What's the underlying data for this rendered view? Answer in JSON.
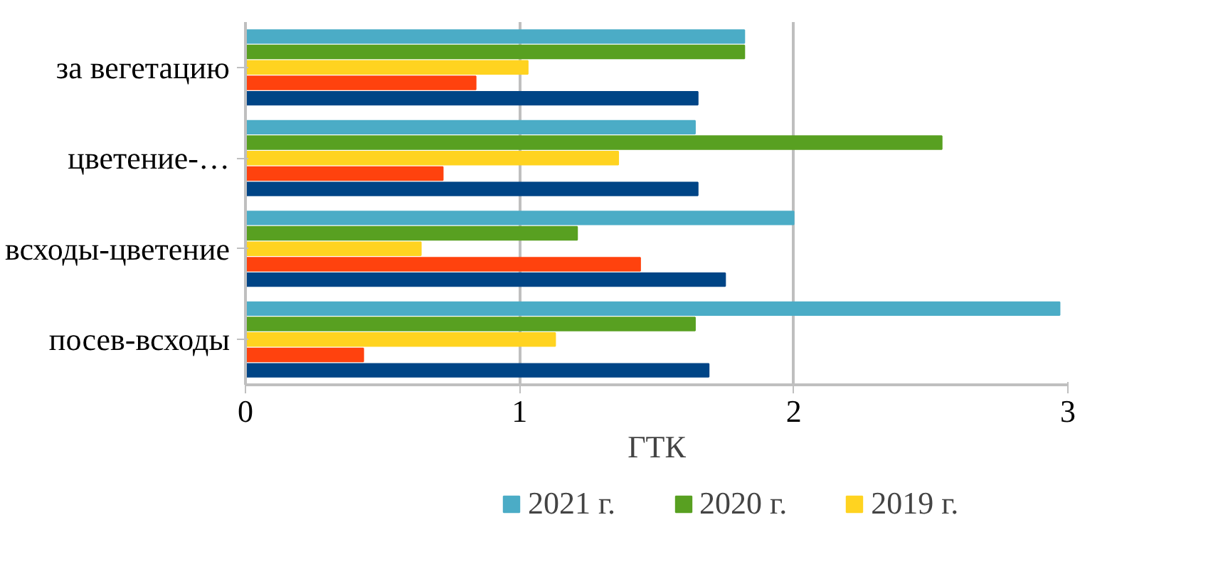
{
  "chart_data": {
    "type": "bar",
    "orientation": "horizontal",
    "xlabel": "ГТК",
    "categories": [
      "за вегетацию",
      "цветение-…",
      "всходы-цветение",
      "посев-всходы"
    ],
    "series": [
      {
        "name": "2021 г.",
        "color": "#4bacc6",
        "values": [
          1.82,
          1.64,
          2.0,
          2.97
        ]
      },
      {
        "name": "2020 г.",
        "color": "#58a021",
        "values": [
          1.82,
          2.54,
          1.21,
          1.64
        ]
      },
      {
        "name": "2019 г.",
        "color": "#ffd320",
        "values": [
          1.03,
          1.36,
          0.64,
          1.13
        ]
      },
      {
        "color": "#ff420e",
        "values": [
          0.84,
          0.72,
          1.44,
          0.43
        ]
      },
      {
        "color": "#004586",
        "values": [
          1.65,
          1.65,
          1.75,
          1.69
        ]
      }
    ],
    "xlim": [
      0,
      3
    ],
    "xticks": [
      0,
      1,
      2,
      3
    ],
    "grid": "x",
    "legend": "bottom"
  }
}
